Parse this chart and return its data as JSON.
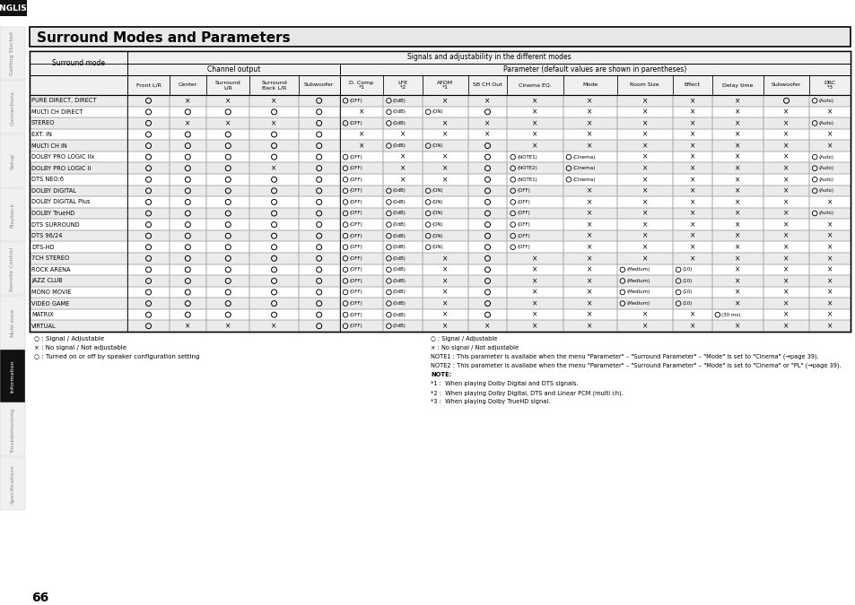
{
  "title": "Surround Modes and Parameters",
  "english_label": "ENGLISH",
  "page_number": "66",
  "header_row1": "Signals and adjustability in the different modes",
  "header_channel": "Channel output",
  "header_param": "Parameter (default values are shown in parentheses)",
  "col_headers_channel": [
    "Front L/R",
    "Center",
    "Surround\nL/R",
    "Surround\nBack L/R",
    "Subwoofer"
  ],
  "col_headers_param": [
    "D. Comp\n*1",
    "LFE\n*2",
    "AFDM\n*1",
    "SB CH Out",
    "Cinema EQ.",
    "Mode",
    "Room Size",
    "Effect",
    "Delay time",
    "Subwoofer",
    "DRC\n*3"
  ],
  "rows": [
    {
      "mode": "PURE DIRECT, DIRECT",
      "ch": [
        "O",
        "X",
        "X",
        "X",
        "O"
      ],
      "param": [
        "O (OFF)",
        "O (0dB)",
        "X",
        "X",
        "X",
        "X",
        "X",
        "X",
        "X",
        "O",
        "O (Auto)"
      ]
    },
    {
      "mode": "MULTI CH DIRECT",
      "ch": [
        "O",
        "O",
        "O",
        "O",
        "O"
      ],
      "param": [
        "X",
        "O (0dB)",
        "O (ON)",
        "O",
        "X",
        "X",
        "X",
        "X",
        "X",
        "X",
        "X"
      ]
    },
    {
      "mode": "STEREO",
      "ch": [
        "O",
        "X",
        "X",
        "X",
        "O"
      ],
      "param": [
        "O (OFF)",
        "O (0dB)",
        "X",
        "X",
        "X",
        "X",
        "X",
        "X",
        "X",
        "X",
        "O (Auto)"
      ]
    },
    {
      "mode": "EXT. IN",
      "ch": [
        "O",
        "O",
        "O",
        "O",
        "O"
      ],
      "param": [
        "X",
        "X",
        "X",
        "X",
        "X",
        "X",
        "X",
        "X",
        "X",
        "X",
        "X"
      ]
    },
    {
      "mode": "MULTI CH IN",
      "ch": [
        "O",
        "O",
        "O",
        "O",
        "O"
      ],
      "param": [
        "X",
        "O (0dB)",
        "O (ON)",
        "O",
        "X",
        "X",
        "X",
        "X",
        "X",
        "X",
        "X"
      ]
    },
    {
      "mode": "DOLBY PRO LOGIC IIx",
      "ch": [
        "O",
        "O",
        "O",
        "O",
        "O"
      ],
      "param": [
        "O (OFF)",
        "X",
        "X",
        "O",
        "O (NOTE1)",
        "O (Cinema)",
        "X",
        "X",
        "X",
        "X",
        "O (Auto)"
      ]
    },
    {
      "mode": "DOLBY PRO LOGIC II",
      "ch": [
        "O",
        "O",
        "O",
        "X",
        "O"
      ],
      "param": [
        "O (OFF)",
        "X",
        "X",
        "O",
        "O (NOTE2)",
        "O (Cinema)",
        "X",
        "X",
        "X",
        "X",
        "O (Auto)"
      ]
    },
    {
      "mode": "DTS NEO:6",
      "ch": [
        "O",
        "O",
        "O",
        "O",
        "O"
      ],
      "param": [
        "O (OFF)",
        "X",
        "X",
        "O",
        "O (NOTE1)",
        "O (Cinema)",
        "X",
        "X",
        "X",
        "X",
        "O (Auto)"
      ]
    },
    {
      "mode": "DOLBY DIGITAL",
      "ch": [
        "O",
        "O",
        "O",
        "O",
        "O"
      ],
      "param": [
        "O (OFF)",
        "O (0dB)",
        "O (ON)",
        "O",
        "O (OFF)",
        "X",
        "X",
        "X",
        "X",
        "X",
        "O (Auto)"
      ]
    },
    {
      "mode": "DOLBY DIGITAL Plus",
      "ch": [
        "O",
        "O",
        "O",
        "O",
        "O"
      ],
      "param": [
        "O (OFF)",
        "O (0dB)",
        "O (ON)",
        "O",
        "O (OFF)",
        "X",
        "X",
        "X",
        "X",
        "X",
        "X"
      ]
    },
    {
      "mode": "DOLBY TrueHD",
      "ch": [
        "O",
        "O",
        "O",
        "O",
        "O"
      ],
      "param": [
        "O (OFF)",
        "O (0dB)",
        "O (ON)",
        "O",
        "O (OFF)",
        "X",
        "X",
        "X",
        "X",
        "X",
        "O (Auto)"
      ]
    },
    {
      "mode": "DTS SURROUND",
      "ch": [
        "O",
        "O",
        "O",
        "O",
        "O"
      ],
      "param": [
        "O (OFF)",
        "O (0dB)",
        "O (ON)",
        "O",
        "O (OFF)",
        "X",
        "X",
        "X",
        "X",
        "X",
        "X"
      ]
    },
    {
      "mode": "DTS 96/24",
      "ch": [
        "O",
        "O",
        "O",
        "O",
        "O"
      ],
      "param": [
        "O (OFF)",
        "O (0dB)",
        "O (ON)",
        "O",
        "O (OFF)",
        "X",
        "X",
        "X",
        "X",
        "X",
        "X"
      ]
    },
    {
      "mode": "DTS-HD",
      "ch": [
        "O",
        "O",
        "O",
        "O",
        "O"
      ],
      "param": [
        "O (OFF)",
        "O (0dB)",
        "O (ON)",
        "O",
        "O (OFF)",
        "X",
        "X",
        "X",
        "X",
        "X",
        "X"
      ]
    },
    {
      "mode": "7CH STEREO",
      "ch": [
        "O",
        "O",
        "O",
        "O",
        "O"
      ],
      "param": [
        "O (OFF)",
        "O (0dB)",
        "X",
        "O",
        "X",
        "X",
        "X",
        "X",
        "X",
        "X",
        "X"
      ]
    },
    {
      "mode": "ROCK ARENA",
      "ch": [
        "O",
        "O",
        "O",
        "O",
        "O"
      ],
      "param": [
        "O (OFF)",
        "O (0dB)",
        "X",
        "O",
        "X",
        "X",
        "O (Medium)",
        "O (10)",
        "X",
        "X",
        "X"
      ]
    },
    {
      "mode": "JAZZ CLUB",
      "ch": [
        "O",
        "O",
        "O",
        "O",
        "O"
      ],
      "param": [
        "O (OFF)",
        "O (0dB)",
        "X",
        "O",
        "X",
        "X",
        "O (Medium)",
        "O (10)",
        "X",
        "X",
        "X"
      ]
    },
    {
      "mode": "MONO MOVIE",
      "ch": [
        "O",
        "O",
        "O",
        "O",
        "O"
      ],
      "param": [
        "O (OFF)",
        "O (0dB)",
        "X",
        "O",
        "X",
        "X",
        "O (Medium)",
        "O (10)",
        "X",
        "X",
        "X"
      ]
    },
    {
      "mode": "VIDEO GAME",
      "ch": [
        "O",
        "O",
        "O",
        "O",
        "O"
      ],
      "param": [
        "O (OFF)",
        "O (0dB)",
        "X",
        "O",
        "X",
        "X",
        "O (Medium)",
        "O (10)",
        "X",
        "X",
        "X"
      ]
    },
    {
      "mode": "MATRIX",
      "ch": [
        "O",
        "O",
        "O",
        "O",
        "O"
      ],
      "param": [
        "O (OFF)",
        "O (0dB)",
        "X",
        "O",
        "X",
        "X",
        "X",
        "X",
        "O (30 ms)",
        "X",
        "X"
      ]
    },
    {
      "mode": "VIRTUAL",
      "ch": [
        "O",
        "X",
        "X",
        "X",
        "O"
      ],
      "param": [
        "O (OFF)",
        "O (0dB)",
        "X",
        "X",
        "X",
        "X",
        "X",
        "X",
        "X",
        "X",
        "X"
      ]
    }
  ],
  "legend_left": [
    "○ : Signal / Adjustable",
    "× : No signal / Not adjustable",
    "○ : Turned on or off by speaker configuration setting"
  ],
  "legend_right_line1": "○ : Signal / Adjustable",
  "legend_right_line2": "× : No signal / Not adjustable",
  "legend_note1": "NOTE1 : This parameter is availabe when the menu \"Parameter\" – \"Surround Parameter\" – \"Mode\" is set to \"Cinema\" (→page 39).",
  "legend_note2": "NOTE2 : This parameter is availabe when the menu \"Parameter\" – \"Surround Parameter\" – \"Mode\" is set to \"Cinema\" or \"PL\" (→page 39).",
  "legend_note_label": "NOTE:",
  "legend_notes": [
    "*1 :  When playing Dolby Digital and DTS signals.",
    "*2 :  When playing Dolby Digital, DTS and Linear PCM (multi ch).",
    "*3 :  When playing Dolby TrueHD signal."
  ],
  "sidebar_labels": [
    "Getting Started",
    "Connections",
    "Setup",
    "Playback",
    "Remote Control",
    "Multi-zone",
    "Information",
    "Troubleshooting",
    "Specifications"
  ],
  "sidebar_active": 6,
  "bg_color": "#ffffff",
  "border_color": "#000000",
  "title_bg": "#e8e8e8",
  "header_bg": "#f0f0f0",
  "row_odd_bg": "#ebebeb",
  "row_even_bg": "#ffffff",
  "english_bg": "#111111",
  "english_fg": "#ffffff"
}
